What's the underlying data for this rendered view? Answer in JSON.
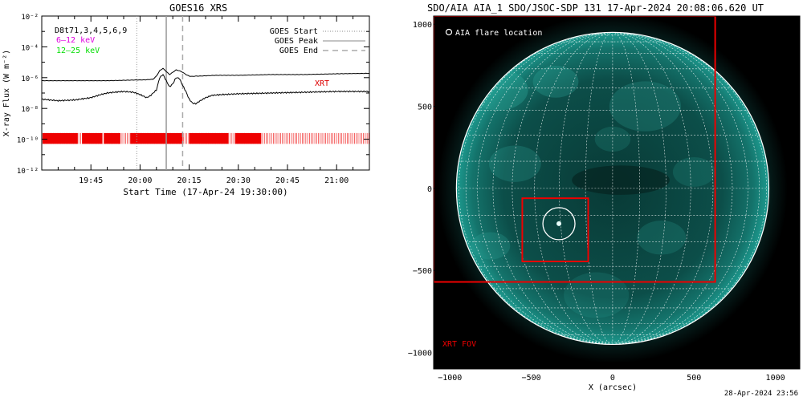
{
  "goes_panel": {
    "title": "GOES16 XRS",
    "xlabel": "Start Time (17-Apr-24 19:30:00)",
    "ylabel": "X-ray Flux (W m⁻²)",
    "det_label": "D8t71,3,4,5,6,9",
    "band_labels": [
      {
        "text": "6–12 keV",
        "color": "#e000e0"
      },
      {
        "text": "12–25 keV",
        "color": "#00dd00"
      }
    ],
    "legend": [
      {
        "text": "GOES Start",
        "style": "dotted"
      },
      {
        "text": "GOES Peak",
        "style": "solid"
      },
      {
        "text": "GOES End",
        "style": "dashed"
      }
    ],
    "xrt_label": "XRT",
    "y_ticks": [
      "10⁻²",
      "10⁻⁴",
      "10⁻⁶",
      "10⁻⁸",
      "10⁻¹⁰",
      "10⁻¹²"
    ],
    "x_ticks": [
      "19:45",
      "20:00",
      "20:15",
      "20:30",
      "20:45",
      "21:00"
    ]
  },
  "aia_panel": {
    "title": "SDO/AIA AIA_1 SDO/JSOC-SDP 131 17-Apr-2024 20:08:06.620 UT",
    "legend_text": "AIA flare location",
    "fov_label": "XRT FOV",
    "xlabel": "X (arcsec)",
    "x_ticks": [
      "−1000",
      "−500",
      "0",
      "500",
      "1000"
    ],
    "y_ticks": [
      "1000",
      "500",
      "0",
      "−500",
      "−1000"
    ]
  },
  "footer_stamp": "28-Apr-2024 23:56",
  "chart_data": [
    {
      "type": "line",
      "title": "GOES16 XRS",
      "xlabel": "Start Time (17-Apr-24 19:30:00)",
      "ylabel": "X-ray Flux (W m⁻²)",
      "x_unit": "minutes after 19:30:00",
      "xlim": [
        0,
        100
      ],
      "ylim_log10": [
        -12,
        -2
      ],
      "y_scale": "log",
      "series": [
        {
          "name": "GOES long channel",
          "color": "#000000",
          "x": [
            0,
            10,
            20,
            29,
            31,
            34,
            35,
            36,
            37,
            38,
            39,
            40,
            41,
            42,
            43,
            44,
            45,
            46,
            47,
            48,
            50,
            53,
            60,
            70,
            80,
            90,
            100
          ],
          "log10_flux": [
            -6.2,
            -6.2,
            -6.2,
            -6.15,
            -6.15,
            -6.1,
            -5.9,
            -5.55,
            -5.4,
            -5.6,
            -5.8,
            -5.65,
            -5.5,
            -5.55,
            -5.65,
            -5.8,
            -5.9,
            -5.92,
            -5.9,
            -5.9,
            -5.88,
            -5.85,
            -5.85,
            -5.8,
            -5.8,
            -5.75,
            -5.72
          ]
        },
        {
          "name": "GOES short channel",
          "color": "#000000",
          "x": [
            0,
            5,
            10,
            15,
            18,
            20,
            22,
            25,
            28,
            30,
            32,
            33,
            35,
            36,
            37,
            38,
            39,
            40,
            41,
            42,
            43,
            44,
            45,
            46,
            47,
            48,
            50,
            52,
            55,
            60,
            70,
            80,
            90,
            100
          ],
          "log10_flux": [
            -7.4,
            -7.5,
            -7.45,
            -7.3,
            -7.1,
            -7.0,
            -6.95,
            -6.9,
            -6.95,
            -7.1,
            -7.3,
            -7.2,
            -6.8,
            -6.0,
            -5.8,
            -6.2,
            -6.6,
            -6.4,
            -6.0,
            -6.05,
            -6.5,
            -6.9,
            -7.4,
            -7.65,
            -7.7,
            -7.55,
            -7.3,
            -7.15,
            -7.1,
            -7.05,
            -7.0,
            -6.95,
            -6.9,
            -6.9
          ]
        }
      ],
      "markers": {
        "goes_start_minutes": 29,
        "goes_peak_minutes": 38,
        "goes_end_minutes": 43
      },
      "xrt_observation_band_log10": [
        -10.3,
        -9.6
      ]
    },
    {
      "type": "heatmap",
      "title": "SDO/AIA AIA_1 SDO/JSOC-SDP 131 17-Apr-2024 20:08:06.620 UT",
      "xlabel": "X (arcsec)",
      "ylabel": "",
      "xlim": [
        -1100,
        1150
      ],
      "ylim": [
        -1100,
        1050
      ],
      "solar_radius_arcsec": 960,
      "xrt_fov_box": {
        "x": [
          -1100,
          630
        ],
        "y": [
          -570,
          1050
        ]
      },
      "flare_box": {
        "x": [
          -555,
          -150
        ],
        "y": [
          -445,
          -60
        ]
      },
      "flare_location": {
        "x": -330,
        "y": -215
      }
    }
  ]
}
